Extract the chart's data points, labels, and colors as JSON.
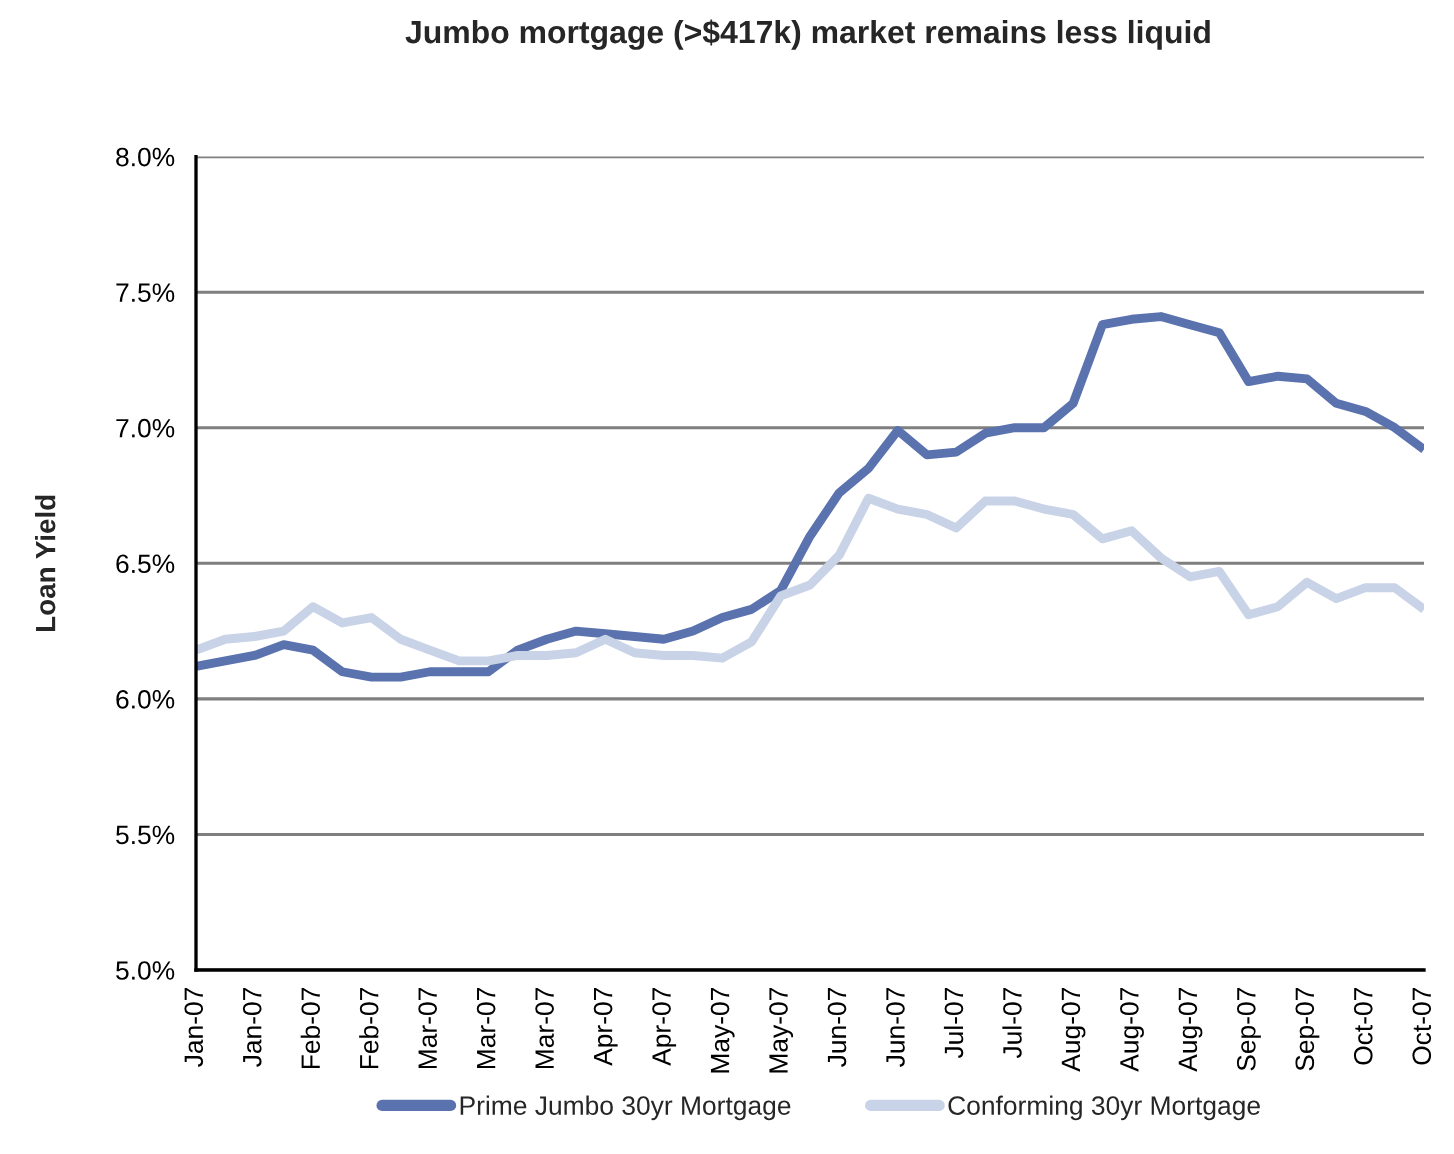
{
  "chart_data": {
    "type": "line",
    "title": "Jumbo mortgage (>$417k) market remains less liquid",
    "ylabel": "Loan Yield",
    "categories": [
      "Jan-07",
      null,
      "Jan-07",
      null,
      "Feb-07",
      null,
      "Feb-07",
      null,
      "Mar-07",
      null,
      "Mar-07",
      null,
      "Mar-07",
      null,
      "Apr-07",
      null,
      "Apr-07",
      null,
      "May-07",
      null,
      "May-07",
      null,
      "Jun-07",
      null,
      "Jun-07",
      null,
      "Jul-07",
      null,
      "Jul-07",
      null,
      "Aug-07",
      null,
      "Aug-07",
      null,
      "Aug-07",
      null,
      "Sep-07",
      null,
      "Sep-07",
      null,
      "Oct-07",
      null,
      "Oct-07"
    ],
    "series": [
      {
        "name": "Prime Jumbo 30yr Mortgage",
        "color": "#5a72ae",
        "values": [
          6.12,
          6.14,
          6.16,
          6.2,
          6.18,
          6.1,
          6.08,
          6.08,
          6.1,
          6.1,
          6.1,
          6.18,
          6.22,
          6.25,
          6.24,
          6.23,
          6.22,
          6.25,
          6.3,
          6.33,
          6.4,
          6.6,
          6.76,
          6.85,
          6.99,
          6.9,
          6.91,
          6.98,
          7.0,
          7.0,
          7.09,
          7.38,
          7.4,
          7.41,
          7.38,
          7.35,
          7.17,
          7.19,
          7.18,
          7.09,
          7.06,
          7.0,
          6.92
        ]
      },
      {
        "name": "Conforming 30yr Mortgage",
        "color": "#c9d3e7",
        "values": [
          6.18,
          6.22,
          6.23,
          6.25,
          6.34,
          6.28,
          6.3,
          6.22,
          6.18,
          6.14,
          6.14,
          6.16,
          6.16,
          6.17,
          6.22,
          6.17,
          6.16,
          6.16,
          6.15,
          6.21,
          6.38,
          6.42,
          6.53,
          6.74,
          6.7,
          6.68,
          6.63,
          6.73,
          6.73,
          6.7,
          6.68,
          6.59,
          6.62,
          6.52,
          6.45,
          6.47,
          6.31,
          6.34,
          6.43,
          6.37,
          6.41,
          6.41,
          6.33
        ]
      }
    ],
    "ylim": [
      5.0,
      8.0
    ],
    "yticks": [
      {
        "value": 5.0,
        "label": "5.0%"
      },
      {
        "value": 5.5,
        "label": "5.5%"
      },
      {
        "value": 6.0,
        "label": "6.0%"
      },
      {
        "value": 6.5,
        "label": "6.5%"
      },
      {
        "value": 7.0,
        "label": "7.0%"
      },
      {
        "value": 7.5,
        "label": "7.5%"
      },
      {
        "value": 8.0,
        "label": "8.0%"
      }
    ],
    "grid": "y",
    "legend": "bottom"
  }
}
